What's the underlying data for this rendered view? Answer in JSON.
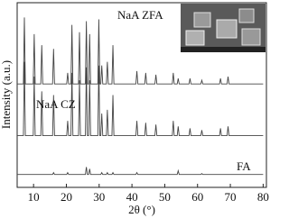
{
  "chart_data": {
    "type": "line",
    "xlabel": "2θ (°)",
    "ylabel": "Intensity (a.u.)",
    "xlim": [
      5,
      81
    ],
    "xticks": [
      10,
      20,
      30,
      40,
      50,
      60,
      70,
      80
    ],
    "ylim": [
      0,
      100
    ],
    "x": [
      5,
      6.9,
      7.2,
      7.5,
      9.9,
      10.2,
      10.5,
      12.2,
      12.5,
      12.8,
      15.8,
      16.1,
      16.4,
      20.1,
      20.4,
      20.7,
      21.4,
      21.7,
      22.0,
      23.7,
      24.0,
      24.3,
      25.8,
      26.1,
      26.4,
      26.8,
      27.1,
      27.4,
      29.6,
      29.9,
      30.2,
      30.5,
      30.8,
      31.1,
      32.2,
      32.5,
      32.8,
      33.9,
      34.2,
      34.5,
      41.2,
      41.5,
      41.8,
      43.9,
      44.2,
      44.5,
      47.0,
      47.3,
      47.6,
      52.3,
      52.6,
      52.9,
      53.8,
      54.1,
      54.4,
      57.4,
      57.7,
      58.0,
      61.0,
      61.3,
      61.6,
      66.7,
      67.0,
      67.3,
      69.0,
      69.3,
      69.6,
      80
    ],
    "series": [
      {
        "name": "NaA ZFA",
        "color": "#444444",
        "values": [
          56,
          56,
          92,
          56,
          56,
          83,
          56,
          56,
          77,
          56,
          56,
          75,
          56,
          56,
          62,
          56,
          56,
          88,
          56,
          56,
          84,
          56,
          56,
          90,
          56,
          56,
          83,
          56,
          56,
          91,
          56,
          56,
          66,
          56,
          56,
          68,
          56,
          56,
          77,
          56,
          56,
          63,
          56,
          56,
          62,
          56,
          56,
          61,
          56,
          56,
          62,
          56,
          56,
          59,
          56,
          56,
          59,
          56,
          56,
          58,
          56,
          56,
          59,
          56,
          56,
          60,
          56,
          56
        ]
      },
      {
        "name": "NaA CZ",
        "color": "#444444",
        "values": [
          28,
          28,
          68,
          28,
          28,
          60,
          28,
          28,
          52,
          28,
          28,
          50,
          28,
          28,
          36,
          28,
          28,
          62,
          28,
          28,
          58,
          28,
          28,
          65,
          28,
          28,
          58,
          28,
          28,
          66,
          28,
          28,
          40,
          28,
          28,
          42,
          28,
          28,
          50,
          28,
          28,
          36,
          28,
          28,
          35,
          28,
          28,
          34,
          28,
          28,
          36,
          28,
          28,
          33,
          28,
          28,
          32,
          28,
          28,
          31,
          28,
          28,
          32,
          28,
          28,
          33,
          28,
          28
        ]
      },
      {
        "name": "FA",
        "color": "#444444",
        "values": [
          7,
          7,
          7,
          7,
          7,
          7,
          7,
          7,
          7,
          7,
          7,
          8,
          7,
          7,
          8,
          7,
          7,
          7,
          7,
          7,
          7,
          7,
          7,
          11,
          7,
          7,
          10,
          7,
          7,
          7,
          7,
          7,
          8,
          7,
          7,
          8,
          7,
          7,
          8,
          7,
          7,
          8,
          7,
          7,
          7,
          7,
          7,
          7,
          7,
          7,
          7,
          7,
          7,
          9,
          7,
          7,
          7,
          7,
          7,
          7.5,
          7,
          7,
          7,
          7,
          7,
          7,
          7,
          7
        ]
      }
    ]
  }
}
